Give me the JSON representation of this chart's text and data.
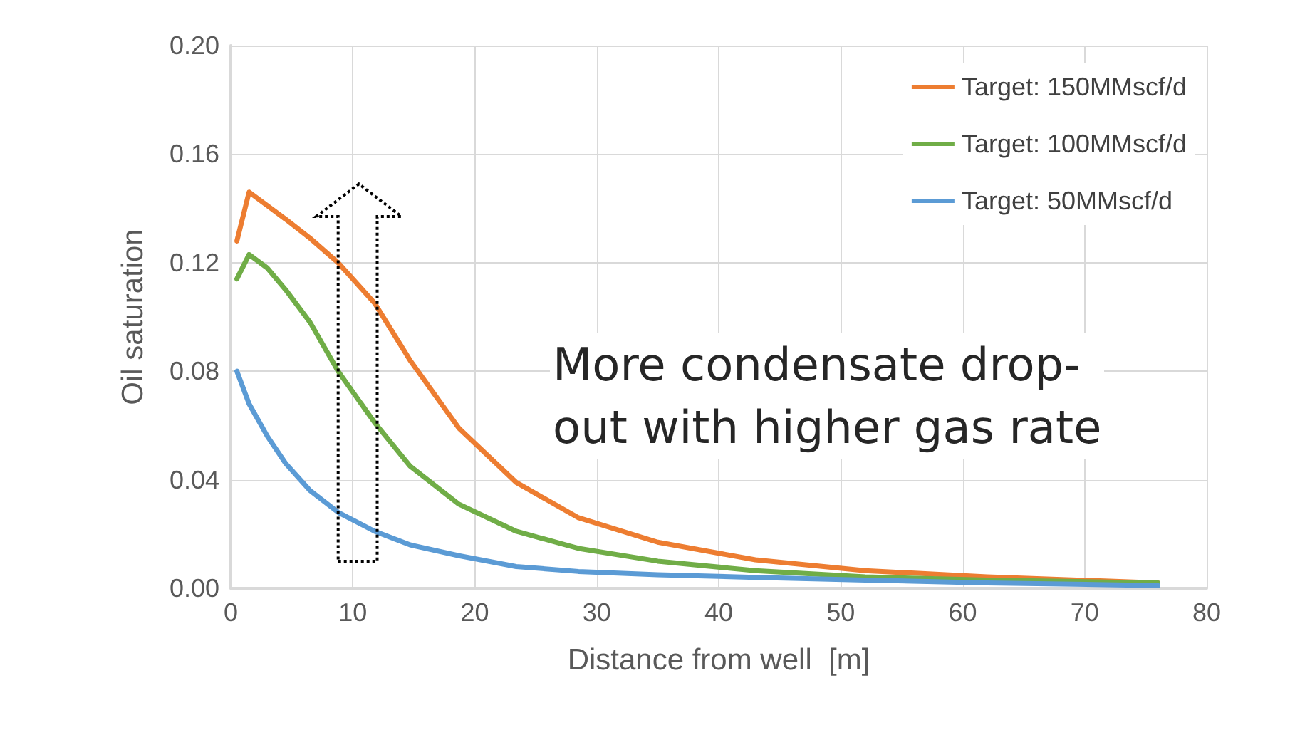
{
  "chart_data": {
    "type": "line",
    "xlabel": "Distance from well  [m]",
    "ylabel": "Oil saturation",
    "x": [
      0.5,
      1.5,
      3,
      4.5,
      6.5,
      8.8,
      11.8,
      14.7,
      18.7,
      23.4,
      28.5,
      35,
      43,
      52,
      62,
      76
    ],
    "series": [
      {
        "name": "Target: 150MMscf/d",
        "color": "#ed7d31",
        "values": [
          0.128,
          0.146,
          0.141,
          0.136,
          0.129,
          0.12,
          0.105,
          0.084,
          0.059,
          0.039,
          0.026,
          0.017,
          0.0105,
          0.0065,
          0.0042,
          0.002
        ]
      },
      {
        "name": "Target: 100MMscf/d",
        "color": "#70ad47",
        "values": [
          0.114,
          0.123,
          0.118,
          0.11,
          0.098,
          0.08,
          0.061,
          0.045,
          0.031,
          0.021,
          0.0147,
          0.01,
          0.0065,
          0.0042,
          0.003,
          0.002
        ]
      },
      {
        "name": "Target: 50MMscf/d",
        "color": "#5b9bd5",
        "values": [
          0.08,
          0.068,
          0.056,
          0.046,
          0.036,
          0.028,
          0.021,
          0.016,
          0.012,
          0.008,
          0.0062,
          0.005,
          0.004,
          0.003,
          0.002,
          0.001
        ]
      }
    ],
    "xlim": [
      0,
      80
    ],
    "xticks": [
      0,
      10,
      20,
      30,
      40,
      50,
      60,
      70,
      80
    ],
    "ylim": [
      0,
      0.2
    ],
    "yticks": [
      {
        "value": 0,
        "label": "0.00"
      },
      {
        "value": 0.04,
        "label": "0.04"
      },
      {
        "value": 0.08,
        "label": "0.08"
      },
      {
        "value": 0.12,
        "label": "0.12"
      },
      {
        "value": 0.16,
        "label": "0.16"
      },
      {
        "value": 0.2,
        "label": "0.20"
      }
    ],
    "annotations": [
      "More condensate drop-\nout with higher gas rate"
    ],
    "grid": true,
    "legend": "top right",
    "marker": "none",
    "line_style": "solid"
  }
}
